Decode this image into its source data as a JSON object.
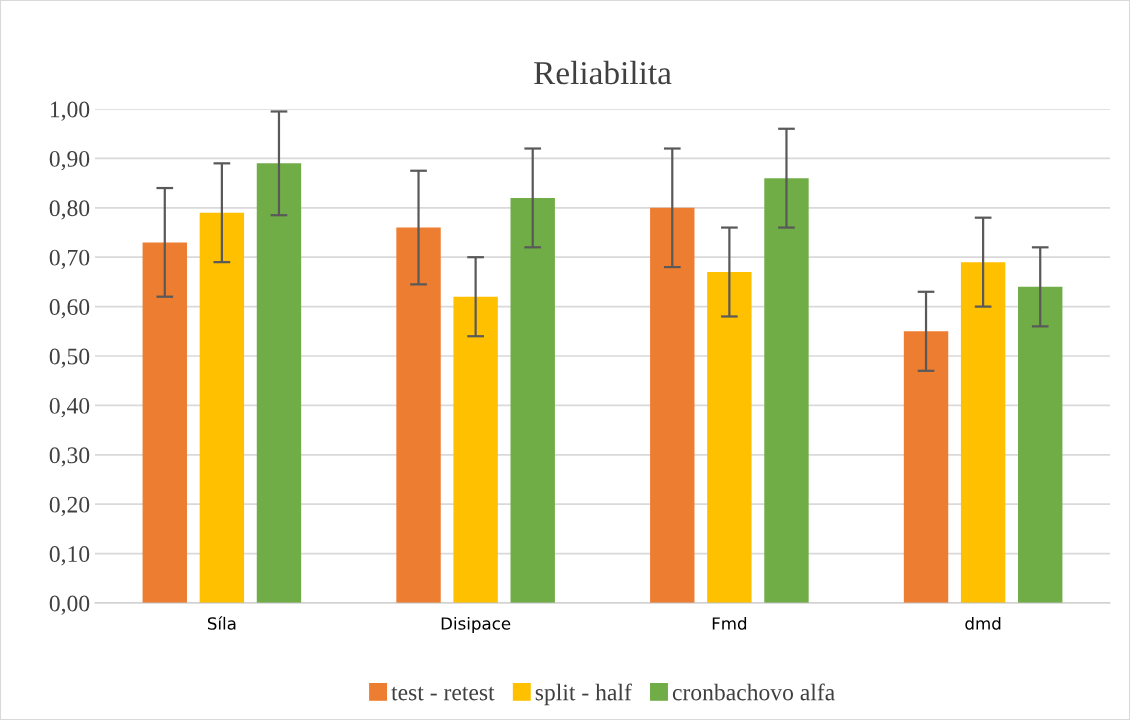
{
  "chart_data": {
    "type": "bar",
    "title": "Reliabilita",
    "categories": [
      "Síla",
      "Disipace",
      "Fmd",
      "dmd"
    ],
    "series": [
      {
        "name": "test - retest",
        "color": "#ed7d31",
        "values": [
          0.73,
          0.76,
          0.8,
          0.55
        ],
        "errors": [
          0.11,
          0.115,
          0.12,
          0.08
        ]
      },
      {
        "name": "split - half",
        "color": "#ffc000",
        "values": [
          0.79,
          0.62,
          0.67,
          0.69
        ],
        "errors": [
          0.1,
          0.08,
          0.09,
          0.09
        ]
      },
      {
        "name": "cronbachovo alfa",
        "color": "#70ad47",
        "values": [
          0.89,
          0.82,
          0.86,
          0.64
        ],
        "errors": [
          0.105,
          0.1,
          0.1,
          0.08
        ]
      }
    ],
    "ylim": [
      0,
      1
    ],
    "yticks": [
      {
        "value": 0,
        "label": "0,00"
      },
      {
        "value": 0.1,
        "label": "0,10"
      },
      {
        "value": 0.2,
        "label": "0,20"
      },
      {
        "value": 0.3,
        "label": "0,30"
      },
      {
        "value": 0.4,
        "label": "0,40"
      },
      {
        "value": 0.5,
        "label": "0,50"
      },
      {
        "value": 0.6,
        "label": "0,60"
      },
      {
        "value": 0.7,
        "label": "0,70"
      },
      {
        "value": 0.8,
        "label": "0,80"
      },
      {
        "value": 0.9,
        "label": "0,90"
      },
      {
        "value": 1.0,
        "label": "1,00"
      }
    ],
    "grid": "y",
    "legend": "bottom"
  }
}
